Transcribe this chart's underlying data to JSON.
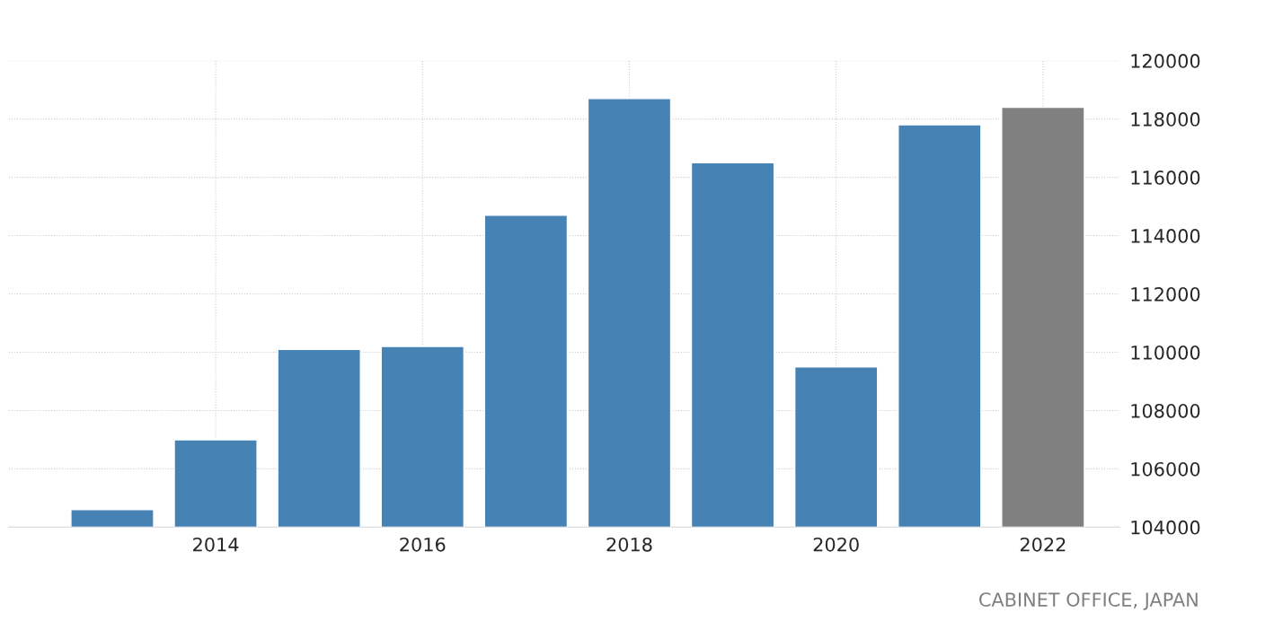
{
  "chart_data": {
    "type": "bar",
    "x": [
      2013,
      2014,
      2015,
      2016,
      2017,
      2018,
      2019,
      2020,
      2021,
      2022
    ],
    "values": [
      104600,
      107000,
      110100,
      110200,
      114700,
      118700,
      116500,
      109500,
      117800,
      118400
    ],
    "colors": [
      "#4682b4",
      "#4682b4",
      "#4682b4",
      "#4682b4",
      "#4682b4",
      "#4682b4",
      "#4682b4",
      "#4682b4",
      "#4682b4",
      "#808080"
    ],
    "xlim": [
      2012.0,
      2022.74
    ],
    "xticks": [
      2014,
      2016,
      2018,
      2020,
      2022
    ],
    "ylim": [
      104000,
      120000
    ],
    "yticks": [
      104000,
      106000,
      108000,
      110000,
      112000,
      114000,
      116000,
      118000,
      120000
    ],
    "grid": true,
    "annotations": [
      "CABINET OFFICE, JAPAN"
    ]
  }
}
